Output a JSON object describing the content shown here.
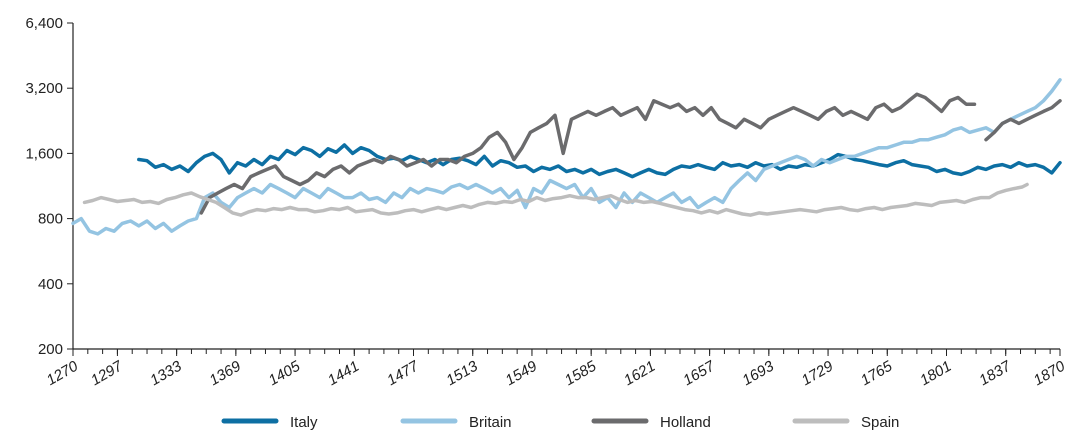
{
  "chart_data": {
    "type": "line",
    "title": "",
    "xlabel": "",
    "ylabel": "",
    "y_scale": "log2",
    "ylim": [
      200,
      6400
    ],
    "xlim": [
      1270,
      1870
    ],
    "y_ticks": [
      "6,400",
      "3,200",
      "1,600",
      "800",
      "400",
      "200"
    ],
    "x_ticks": [
      "1270",
      "1297",
      "1333",
      "1369",
      "1405",
      "1441",
      "1477",
      "1513",
      "1549",
      "1585",
      "1621",
      "1657",
      "1693",
      "1729",
      "1765",
      "1801",
      "1837",
      "1870"
    ],
    "grid": false,
    "legend_position": "bottom",
    "series": [
      {
        "name": "Italy",
        "color": "#0d6fa3",
        "x": [
          1310,
          1315,
          1320,
          1325,
          1330,
          1335,
          1340,
          1345,
          1350,
          1355,
          1360,
          1365,
          1370,
          1375,
          1380,
          1385,
          1390,
          1395,
          1400,
          1405,
          1410,
          1415,
          1420,
          1425,
          1430,
          1435,
          1440,
          1445,
          1450,
          1455,
          1460,
          1465,
          1470,
          1475,
          1480,
          1485,
          1490,
          1495,
          1500,
          1505,
          1510,
          1515,
          1520,
          1525,
          1530,
          1535,
          1540,
          1545,
          1550,
          1555,
          1560,
          1565,
          1570,
          1575,
          1580,
          1585,
          1590,
          1595,
          1600,
          1605,
          1610,
          1615,
          1620,
          1625,
          1630,
          1635,
          1640,
          1645,
          1650,
          1655,
          1660,
          1665,
          1670,
          1675,
          1680,
          1685,
          1690,
          1695,
          1700,
          1705,
          1710,
          1715,
          1720,
          1725,
          1730,
          1735,
          1740,
          1745,
          1750,
          1755,
          1760,
          1765,
          1770,
          1775,
          1780,
          1785,
          1790,
          1795,
          1800,
          1805,
          1810,
          1815,
          1820,
          1825,
          1830,
          1835,
          1840,
          1845,
          1850,
          1855,
          1860,
          1865,
          1870
        ],
        "values": [
          1500,
          1480,
          1380,
          1420,
          1350,
          1400,
          1320,
          1450,
          1550,
          1600,
          1500,
          1300,
          1450,
          1400,
          1500,
          1420,
          1550,
          1500,
          1650,
          1580,
          1700,
          1650,
          1550,
          1680,
          1620,
          1750,
          1600,
          1700,
          1650,
          1550,
          1500,
          1520,
          1480,
          1550,
          1500,
          1450,
          1500,
          1420,
          1500,
          1520,
          1480,
          1420,
          1550,
          1400,
          1480,
          1450,
          1380,
          1400,
          1320,
          1380,
          1350,
          1400,
          1320,
          1350,
          1300,
          1350,
          1280,
          1320,
          1350,
          1300,
          1250,
          1300,
          1350,
          1300,
          1280,
          1350,
          1400,
          1380,
          1420,
          1380,
          1350,
          1450,
          1400,
          1420,
          1380,
          1450,
          1400,
          1420,
          1350,
          1400,
          1380,
          1420,
          1400,
          1450,
          1500,
          1580,
          1550,
          1500,
          1480,
          1450,
          1420,
          1400,
          1450,
          1480,
          1420,
          1400,
          1380,
          1320,
          1350,
          1300,
          1280,
          1320,
          1380,
          1350,
          1400,
          1420,
          1380,
          1450,
          1400,
          1420,
          1380,
          1300,
          1450
        ]
      },
      {
        "name": "Britain",
        "color": "#94c4e2",
        "x": [
          1270,
          1275,
          1280,
          1285,
          1290,
          1295,
          1300,
          1305,
          1310,
          1315,
          1320,
          1325,
          1330,
          1335,
          1340,
          1345,
          1350,
          1355,
          1360,
          1365,
          1370,
          1375,
          1380,
          1385,
          1390,
          1395,
          1400,
          1405,
          1410,
          1415,
          1420,
          1425,
          1430,
          1435,
          1440,
          1445,
          1450,
          1455,
          1460,
          1465,
          1470,
          1475,
          1480,
          1485,
          1490,
          1495,
          1500,
          1505,
          1510,
          1515,
          1520,
          1525,
          1530,
          1535,
          1540,
          1545,
          1550,
          1555,
          1560,
          1565,
          1570,
          1575,
          1580,
          1585,
          1590,
          1595,
          1600,
          1605,
          1610,
          1615,
          1620,
          1625,
          1630,
          1635,
          1640,
          1645,
          1650,
          1655,
          1660,
          1665,
          1670,
          1675,
          1680,
          1685,
          1690,
          1695,
          1700,
          1705,
          1710,
          1715,
          1720,
          1725,
          1730,
          1735,
          1740,
          1745,
          1750,
          1755,
          1760,
          1765,
          1770,
          1775,
          1780,
          1785,
          1790,
          1795,
          1800,
          1805,
          1810,
          1815,
          1820,
          1825,
          1830,
          1835,
          1840,
          1845,
          1850,
          1855,
          1860,
          1865,
          1870
        ],
        "values": [
          760,
          800,
          700,
          680,
          720,
          700,
          760,
          780,
          740,
          780,
          720,
          760,
          700,
          740,
          780,
          800,
          1000,
          1050,
          950,
          900,
          1000,
          1050,
          1100,
          1050,
          1150,
          1100,
          1050,
          1000,
          1100,
          1050,
          1000,
          1100,
          1050,
          1000,
          1000,
          1050,
          980,
          1000,
          950,
          1050,
          1000,
          1100,
          1050,
          1100,
          1080,
          1050,
          1120,
          1150,
          1100,
          1150,
          1100,
          1050,
          1100,
          1000,
          1080,
          900,
          1100,
          1050,
          1200,
          1150,
          1100,
          1150,
          1000,
          1100,
          950,
          1000,
          900,
          1050,
          950,
          1050,
          1000,
          950,
          1000,
          1050,
          950,
          1000,
          900,
          950,
          1000,
          950,
          1100,
          1200,
          1300,
          1200,
          1350,
          1400,
          1450,
          1500,
          1550,
          1500,
          1400,
          1500,
          1450,
          1500,
          1550,
          1550,
          1600,
          1650,
          1700,
          1700,
          1750,
          1800,
          1800,
          1850,
          1850,
          1900,
          1950,
          2050,
          2100,
          2000,
          2050,
          2100,
          2000,
          2200,
          2300,
          2400,
          2500,
          2600,
          2800,
          3100,
          3500
        ]
      },
      {
        "name": "Holland",
        "color": "#6b6b6d",
        "x": [
          1348,
          1353,
          1358,
          1363,
          1368,
          1373,
          1378,
          1383,
          1388,
          1393,
          1398,
          1403,
          1408,
          1413,
          1418,
          1423,
          1428,
          1433,
          1438,
          1443,
          1448,
          1453,
          1458,
          1463,
          1468,
          1473,
          1478,
          1483,
          1488,
          1493,
          1498,
          1503,
          1508,
          1513,
          1518,
          1523,
          1528,
          1533,
          1538,
          1543,
          1548,
          1553,
          1558,
          1563,
          1568,
          1573,
          1578,
          1583,
          1588,
          1593,
          1598,
          1603,
          1608,
          1613,
          1618,
          1623,
          1628,
          1633,
          1638,
          1643,
          1648,
          1653,
          1658,
          1663,
          1668,
          1673,
          1678,
          1683,
          1688,
          1693,
          1698,
          1703,
          1708,
          1713,
          1718,
          1723,
          1728,
          1733,
          1738,
          1743,
          1748,
          1753,
          1758,
          1763,
          1768,
          1773,
          1778,
          1783,
          1788,
          1793,
          1798,
          1803,
          1808,
          1813,
          1818,
          null,
          1825,
          1830,
          1835,
          1840,
          1845,
          1850,
          1855,
          1860,
          1865,
          1870
        ],
        "values": [
          850,
          1000,
          1050,
          1100,
          1150,
          1100,
          1250,
          1300,
          1350,
          1400,
          1250,
          1200,
          1150,
          1200,
          1300,
          1250,
          1350,
          1400,
          1300,
          1400,
          1450,
          1500,
          1450,
          1550,
          1500,
          1400,
          1450,
          1500,
          1400,
          1500,
          1500,
          1450,
          1550,
          1600,
          1700,
          1900,
          2000,
          1800,
          1500,
          1700,
          2000,
          2100,
          2200,
          2400,
          1600,
          2300,
          2400,
          2500,
          2400,
          2500,
          2600,
          2400,
          2500,
          2600,
          2300,
          2800,
          2700,
          2600,
          2700,
          2500,
          2600,
          2400,
          2600,
          2300,
          2200,
          2100,
          2300,
          2200,
          2100,
          2300,
          2400,
          2500,
          2600,
          2500,
          2400,
          2300,
          2500,
          2600,
          2400,
          2500,
          2400,
          2300,
          2600,
          2700,
          2500,
          2600,
          2800,
          3000,
          2900,
          2700,
          2500,
          2800,
          2900,
          2700,
          2700,
          null,
          1850,
          2000,
          2200,
          2300,
          2200,
          2300,
          2400,
          2500,
          2600,
          2800
        ]
      },
      {
        "name": "Spain",
        "color": "#bdbdbd",
        "x": [
          1277,
          1282,
          1287,
          1292,
          1297,
          1302,
          1307,
          1312,
          1317,
          1322,
          1327,
          1332,
          1337,
          1342,
          1347,
          1352,
          1357,
          1362,
          1367,
          1372,
          1377,
          1382,
          1387,
          1392,
          1397,
          1402,
          1407,
          1412,
          1417,
          1422,
          1427,
          1432,
          1437,
          1442,
          1447,
          1452,
          1457,
          1462,
          1467,
          1472,
          1477,
          1482,
          1487,
          1492,
          1497,
          1502,
          1507,
          1512,
          1517,
          1522,
          1527,
          1532,
          1537,
          1542,
          1547,
          1552,
          1557,
          1562,
          1567,
          1572,
          1577,
          1582,
          1587,
          1592,
          1597,
          1602,
          1607,
          1612,
          1617,
          1622,
          1627,
          1632,
          1637,
          1642,
          1647,
          1652,
          1657,
          1662,
          1667,
          1672,
          1677,
          1682,
          1687,
          1692,
          1697,
          1702,
          1707,
          1712,
          1717,
          1722,
          1727,
          1732,
          1737,
          1742,
          1747,
          1752,
          1757,
          1762,
          1767,
          1772,
          1777,
          1782,
          1787,
          1792,
          1797,
          1802,
          1807,
          1812,
          1817,
          1822,
          1827,
          1832,
          1837,
          1842,
          1847,
          1850
        ],
        "values": [
          950,
          970,
          1000,
          980,
          960,
          970,
          980,
          950,
          960,
          940,
          980,
          1000,
          1030,
          1050,
          1010,
          980,
          950,
          900,
          850,
          830,
          860,
          880,
          870,
          890,
          880,
          900,
          880,
          880,
          860,
          870,
          890,
          880,
          900,
          860,
          870,
          880,
          850,
          840,
          850,
          870,
          880,
          860,
          880,
          900,
          880,
          900,
          920,
          900,
          930,
          950,
          940,
          960,
          950,
          980,
          960,
          1000,
          970,
          990,
          1000,
          1020,
          1000,
          1000,
          980,
          1000,
          1020,
          980,
          950,
          970,
          950,
          960,
          940,
          920,
          900,
          880,
          870,
          850,
          870,
          850,
          880,
          860,
          840,
          830,
          850,
          840,
          850,
          860,
          870,
          880,
          870,
          860,
          880,
          890,
          900,
          880,
          870,
          890,
          900,
          880,
          900,
          910,
          920,
          940,
          930,
          920,
          950,
          960,
          970,
          950,
          980,
          1000,
          1000,
          1050,
          1080,
          1100,
          1120,
          1150
        ]
      }
    ]
  }
}
